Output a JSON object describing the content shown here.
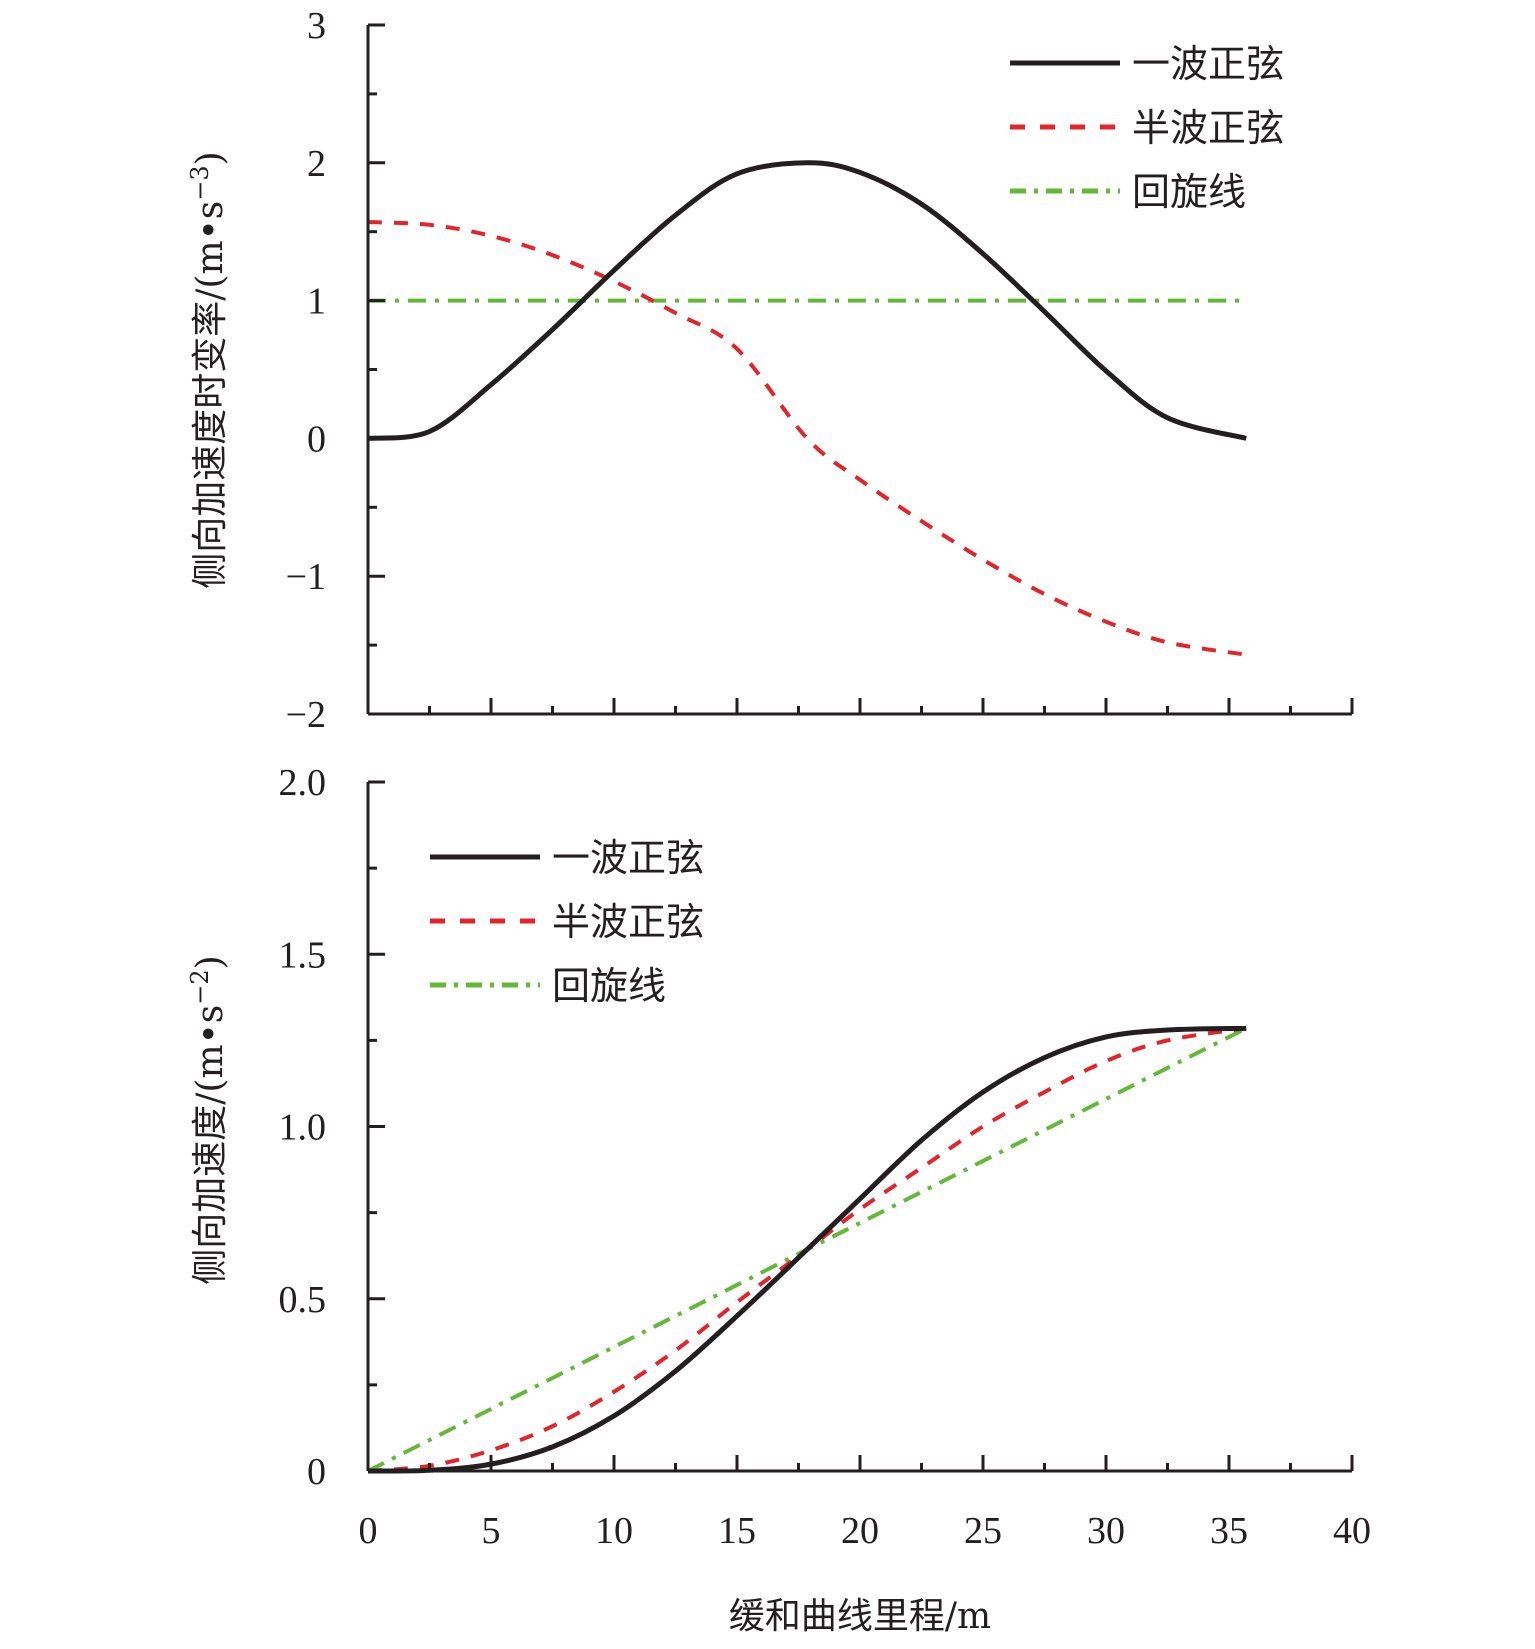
{
  "chart_data": [
    {
      "type": "line",
      "panel": "top",
      "title": "",
      "xlabel": "缓和曲线里程/m",
      "ylabel": "侧向加速度时变率/(m•s",
      "ylabel_sup": "−3",
      "ylabel_close": ")",
      "xlim": [
        0,
        40
      ],
      "ylim": [
        -2,
        3
      ],
      "xticks": [
        0,
        5,
        10,
        15,
        20,
        25,
        30,
        35,
        40
      ],
      "yticks": [
        3,
        2,
        1,
        0,
        -1,
        -2
      ],
      "ytick_labels": [
        "3",
        "2",
        "1",
        "0",
        "−1",
        "−2"
      ],
      "grid": false,
      "legend_position": "top-right",
      "x": [
        0,
        2.5,
        5,
        7.5,
        10,
        12.5,
        15,
        17.85,
        20,
        22.5,
        25,
        27.5,
        30,
        32.5,
        35.7
      ],
      "series": [
        {
          "name": "一波正弦",
          "color": "#231f20",
          "style": "solid",
          "values": [
            0,
            0.05,
            0.39,
            0.79,
            1.22,
            1.62,
            1.92,
            2.0,
            1.93,
            1.7,
            1.34,
            0.92,
            0.49,
            0.15,
            0
          ]
        },
        {
          "name": "半波正弦",
          "color": "#e3242b",
          "style": "dashed",
          "values": [
            1.57,
            1.55,
            1.47,
            1.33,
            1.14,
            0.91,
            0.65,
            0.0,
            -0.3,
            -0.6,
            -0.88,
            -1.13,
            -1.33,
            -1.48,
            -1.57
          ]
        },
        {
          "name": "回旋线",
          "color": "#63b83a",
          "style": "dashdot",
          "values": [
            1,
            1,
            1,
            1,
            1,
            1,
            1,
            1,
            1,
            1,
            1,
            1,
            1,
            1,
            1
          ]
        }
      ]
    },
    {
      "type": "line",
      "panel": "bottom",
      "title": "",
      "xlabel": "缓和曲线里程/m",
      "ylabel": "侧向加速度/(m•s",
      "ylabel_sup": "−2",
      "ylabel_close": ")",
      "xlim": [
        0,
        40
      ],
      "ylim": [
        0,
        2.0
      ],
      "xticks": [
        0,
        5,
        10,
        15,
        20,
        25,
        30,
        35,
        40
      ],
      "xtick_labels": [
        "0",
        "5",
        "10",
        "15",
        "20",
        "25",
        "30",
        "35",
        "40"
      ],
      "yticks": [
        2.0,
        1.5,
        1.0,
        0.5,
        0
      ],
      "ytick_labels": [
        "2.0",
        "1.5",
        "1.0",
        "0.5",
        "0"
      ],
      "grid": false,
      "legend_position": "top-left",
      "x": [
        0,
        2.5,
        5,
        7.5,
        10,
        12.5,
        15,
        17.85,
        20,
        22.5,
        25,
        27.5,
        30,
        32.5,
        35.7
      ],
      "series": [
        {
          "name": "一波正弦",
          "color": "#231f20",
          "style": "solid",
          "values": [
            0,
            0.002,
            0.02,
            0.07,
            0.16,
            0.29,
            0.45,
            0.643,
            0.79,
            0.96,
            1.1,
            1.2,
            1.26,
            1.28,
            1.285
          ]
        },
        {
          "name": "半波正弦",
          "color": "#e3242b",
          "style": "dashed",
          "values": [
            0,
            0.015,
            0.06,
            0.13,
            0.23,
            0.35,
            0.49,
            0.643,
            0.76,
            0.88,
            1.0,
            1.1,
            1.19,
            1.25,
            1.285
          ]
        },
        {
          "name": "回旋线",
          "color": "#63b83a",
          "style": "dashdot",
          "values": [
            0,
            0.09,
            0.18,
            0.27,
            0.36,
            0.45,
            0.54,
            0.643,
            0.72,
            0.81,
            0.9,
            0.99,
            1.08,
            1.17,
            1.285
          ]
        }
      ]
    }
  ]
}
